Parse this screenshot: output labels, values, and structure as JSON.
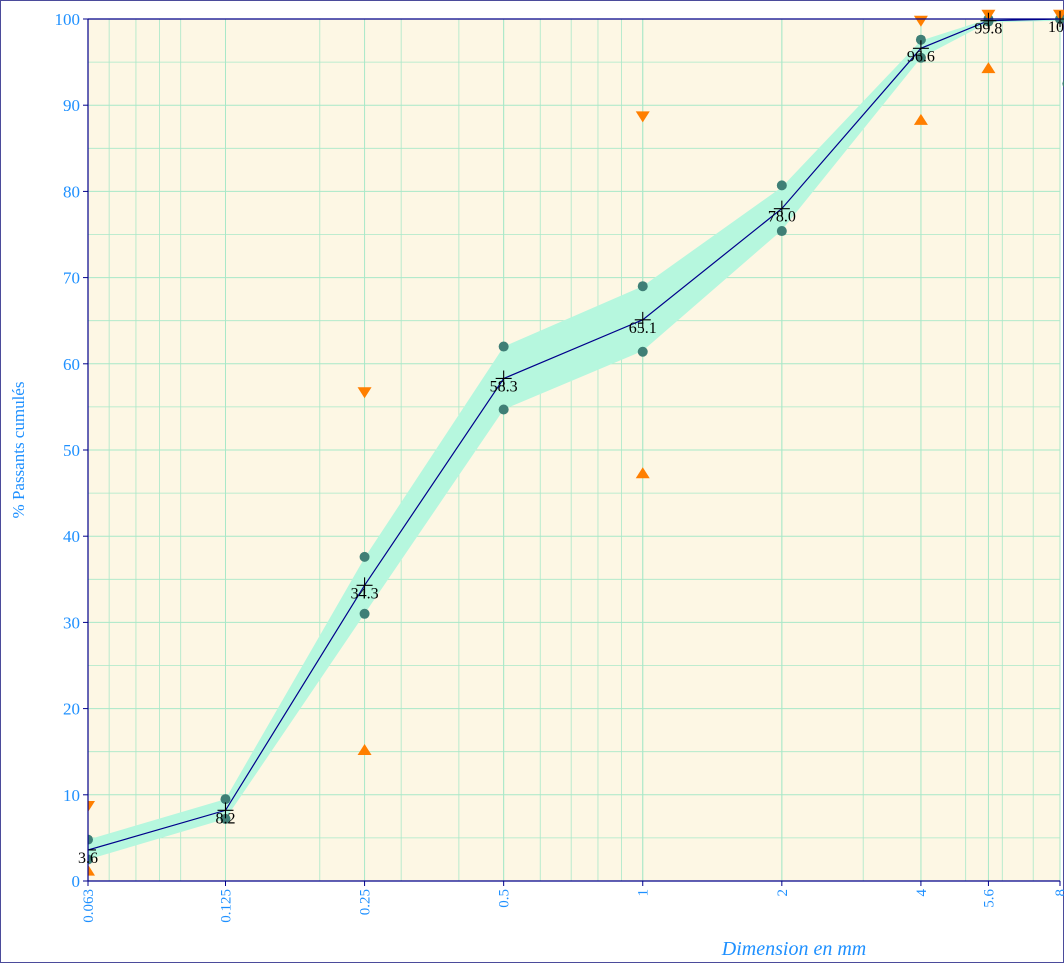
{
  "chart_data": {
    "type": "line",
    "title": "",
    "xlabel": "Dimension en mm",
    "ylabel": "% Passants cumulés",
    "x_scale": "log",
    "ylim": [
      0,
      100
    ],
    "y_ticks": [
      0,
      10,
      20,
      30,
      40,
      50,
      60,
      70,
      80,
      90,
      100
    ],
    "x_ticks": [
      0.063,
      0.125,
      0.25,
      0.5,
      1,
      2,
      4,
      5.6,
      8
    ],
    "x_tick_labels": [
      "0.063",
      "0.125",
      "0.25",
      "0.5",
      "1",
      "2",
      "4",
      "5.6",
      "8"
    ],
    "grid": true,
    "series": [
      {
        "type": "line",
        "x": [
          0.063,
          0.125,
          0.25,
          0.5,
          1,
          2,
          4,
          5.6,
          8
        ],
        "values": [
          3.6,
          8.2,
          34.3,
          58.3,
          65.1,
          78.0,
          96.6,
          99.8,
          100
        ],
        "labels": [
          "3.6",
          "8.2",
          "34.3",
          "58.3",
          "65.1",
          "78.0",
          "96.6",
          "99.8",
          "100"
        ]
      },
      {
        "type": "band",
        "x": [
          0.063,
          0.125,
          0.25,
          0.5,
          1,
          2,
          4,
          5.6,
          8
        ],
        "upper": [
          4.8,
          9.5,
          37.5,
          62,
          69,
          80.5,
          97.5,
          100,
          100
        ],
        "lower": [
          2.5,
          7.2,
          31,
          54.7,
          61.5,
          75.5,
          95.5,
          99.6,
          99.8
        ]
      },
      {
        "type": "scatter",
        "x": [
          0.063,
          0.063,
          0.125,
          0.125,
          0.25,
          0.25,
          0.5,
          0.5,
          1,
          1,
          2,
          2,
          4,
          4,
          5.6,
          5.6,
          8,
          8.3
        ],
        "values": [
          4.8,
          2.5,
          9.5,
          7.2,
          37.6,
          31,
          62,
          54.7,
          69,
          61.4,
          80.7,
          75.4,
          97.6,
          95.5,
          100,
          99.7,
          100,
          92.5
        ]
      },
      {
        "type": "scatter",
        "marker": "triangle-down",
        "x": [
          0.063,
          0.25,
          1,
          4,
          5.6,
          8
        ],
        "values": [
          8.7,
          56.7,
          88.7,
          99.8,
          100.5,
          100.5
        ]
      },
      {
        "type": "scatter",
        "marker": "triangle-up",
        "x": [
          0.063,
          0.25,
          1,
          4,
          5.6
        ],
        "values": [
          1.2,
          15.2,
          47.3,
          88.3,
          94.3
        ]
      }
    ],
    "colors": {
      "plot_background": "#fdf7e4",
      "grid": "#a8e8c8",
      "curve": "#00008b",
      "band": "#b6f7de",
      "points": "#3f7f76",
      "triangles": "#ff7f00",
      "axis_labels": "#1e90ff",
      "point_labels": "#000000",
      "frame": "#4b4b9b"
    }
  }
}
